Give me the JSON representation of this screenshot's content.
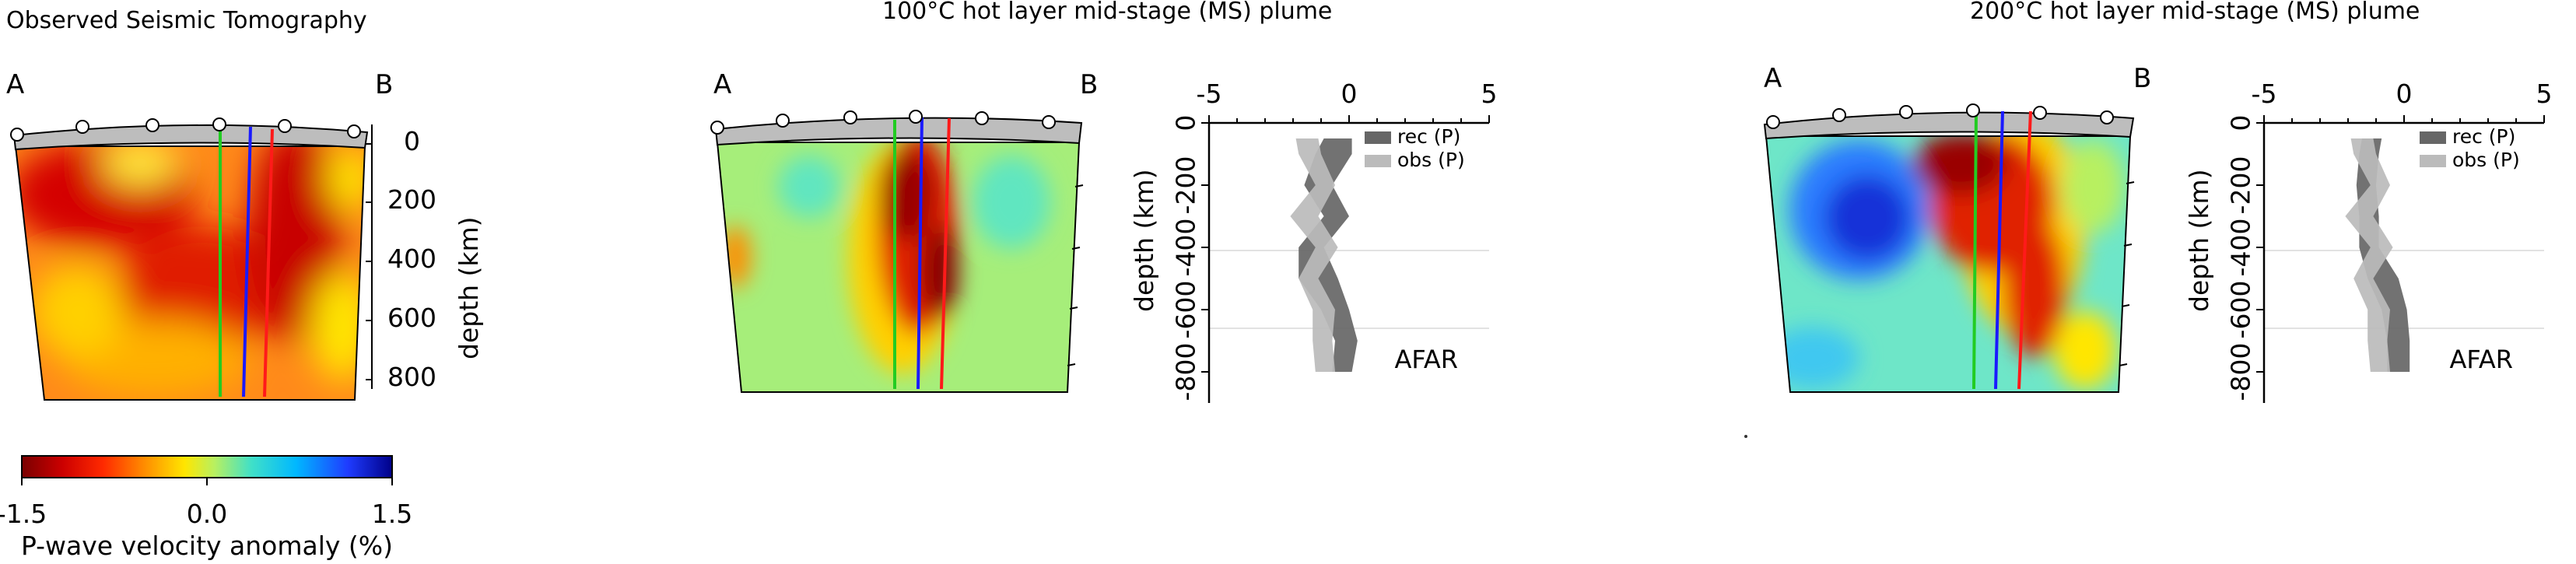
{
  "panels": [
    {
      "title": "Observed Seismic Tomography",
      "label_a": "A",
      "label_b": "B"
    },
    {
      "title": "100°C hot layer mid-stage (MS) plume",
      "label_a": "A",
      "label_b": "B"
    },
    {
      "title": "200°C hot layer mid-stage (MS) plume",
      "label_a": "A",
      "label_b": "B"
    }
  ],
  "section_axis": {
    "ticks": [
      "0",
      "200",
      "400",
      "600",
      "800"
    ],
    "label": "depth (km)"
  },
  "colorbar": {
    "ticks": [
      "-1.5",
      "0.0",
      "1.5"
    ],
    "label": "P-wave velocity anomaly (%)",
    "colors": [
      "#7a0000",
      "#cc0000",
      "#ff2a00",
      "#ff8c00",
      "#ffe600",
      "#b8f060",
      "#40e0c8",
      "#00b8ff",
      "#1f3cff",
      "#000088"
    ]
  },
  "chart_data": [
    {
      "type": "area",
      "title": "",
      "xlabel": "",
      "ylabel": "depth (km)",
      "xlim": [
        -5,
        5
      ],
      "ylim": [
        0,
        -900
      ],
      "xticks": [
        "-5",
        "0",
        "5"
      ],
      "yticks": [
        "0",
        "-200",
        "-400",
        "-600",
        "-800"
      ],
      "legend": "top-right",
      "station": "AFAR",
      "series": [
        {
          "name": "rec (P)",
          "color": "#666666",
          "depth": [
            -50,
            -100,
            -200,
            -300,
            -400,
            -500,
            -600,
            -700,
            -800
          ],
          "low": [
            -0.9,
            -1.2,
            -1.6,
            -0.9,
            -1.8,
            -1.8,
            -1.0,
            -0.5,
            -0.6
          ],
          "high": [
            0.1,
            0.1,
            -0.6,
            0.0,
            -0.9,
            -0.4,
            0.0,
            0.3,
            0.1
          ]
        },
        {
          "name": "obs (P)",
          "color": "#bbbbbb",
          "depth": [
            -50,
            -100,
            -200,
            -300,
            -400,
            -500,
            -600,
            -700,
            -800
          ],
          "low": [
            -1.9,
            -1.8,
            -1.2,
            -2.1,
            -1.2,
            -1.8,
            -1.3,
            -1.3,
            -1.2
          ],
          "high": [
            -1.1,
            -1.0,
            -0.5,
            -1.1,
            -0.4,
            -1.1,
            -0.5,
            -0.6,
            -0.5
          ]
        }
      ]
    },
    {
      "type": "area",
      "title": "",
      "xlabel": "",
      "ylabel": "depth (km)",
      "xlim": [
        -5,
        5
      ],
      "ylim": [
        0,
        -900
      ],
      "xticks": [
        "-5",
        "0",
        "5"
      ],
      "yticks": [
        "0",
        "-200",
        "-400",
        "-600",
        "-800"
      ],
      "legend": "top-right",
      "station": "AFAR",
      "series": [
        {
          "name": "rec (P)",
          "color": "#666666",
          "depth": [
            -50,
            -100,
            -200,
            -300,
            -400,
            -500,
            -600,
            -700,
            -800
          ],
          "low": [
            -1.5,
            -1.6,
            -1.7,
            -1.6,
            -1.6,
            -1.3,
            -0.8,
            -0.6,
            -0.6
          ],
          "high": [
            -0.8,
            -0.9,
            -1.0,
            -0.9,
            -0.9,
            -0.2,
            0.1,
            0.2,
            0.2
          ]
        },
        {
          "name": "obs (P)",
          "color": "#bbbbbb",
          "depth": [
            -50,
            -100,
            -200,
            -300,
            -400,
            -500,
            -600,
            -700,
            -800
          ],
          "low": [
            -1.9,
            -1.8,
            -1.2,
            -2.1,
            -1.2,
            -1.8,
            -1.3,
            -1.3,
            -1.2
          ],
          "high": [
            -1.1,
            -1.0,
            -0.5,
            -1.1,
            -0.4,
            -1.1,
            -0.5,
            -0.6,
            -0.5
          ]
        }
      ]
    }
  ]
}
